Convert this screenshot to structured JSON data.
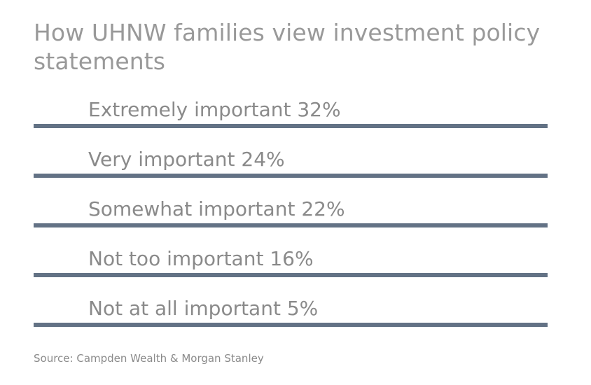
{
  "title": "How UHNW families view investment policy statements",
  "source": "Source: Campden Wealth & Morgan Stanley",
  "chart_data": {
    "type": "table",
    "title": "How UHNW families view investment policy statements",
    "categories": [
      "Extremely important",
      "Very important",
      "Somewhat important",
      "Not too important",
      "Not at all important"
    ],
    "values": [
      32,
      24,
      22,
      16,
      5
    ],
    "unit": "%",
    "labels": [
      "Extremely important 32%",
      "Very important 24%",
      "Somewhat important 22%",
      "Not too important 16%",
      "Not at all important 5%"
    ],
    "line_color": "#637285",
    "text_color": "#8a8a8a"
  }
}
